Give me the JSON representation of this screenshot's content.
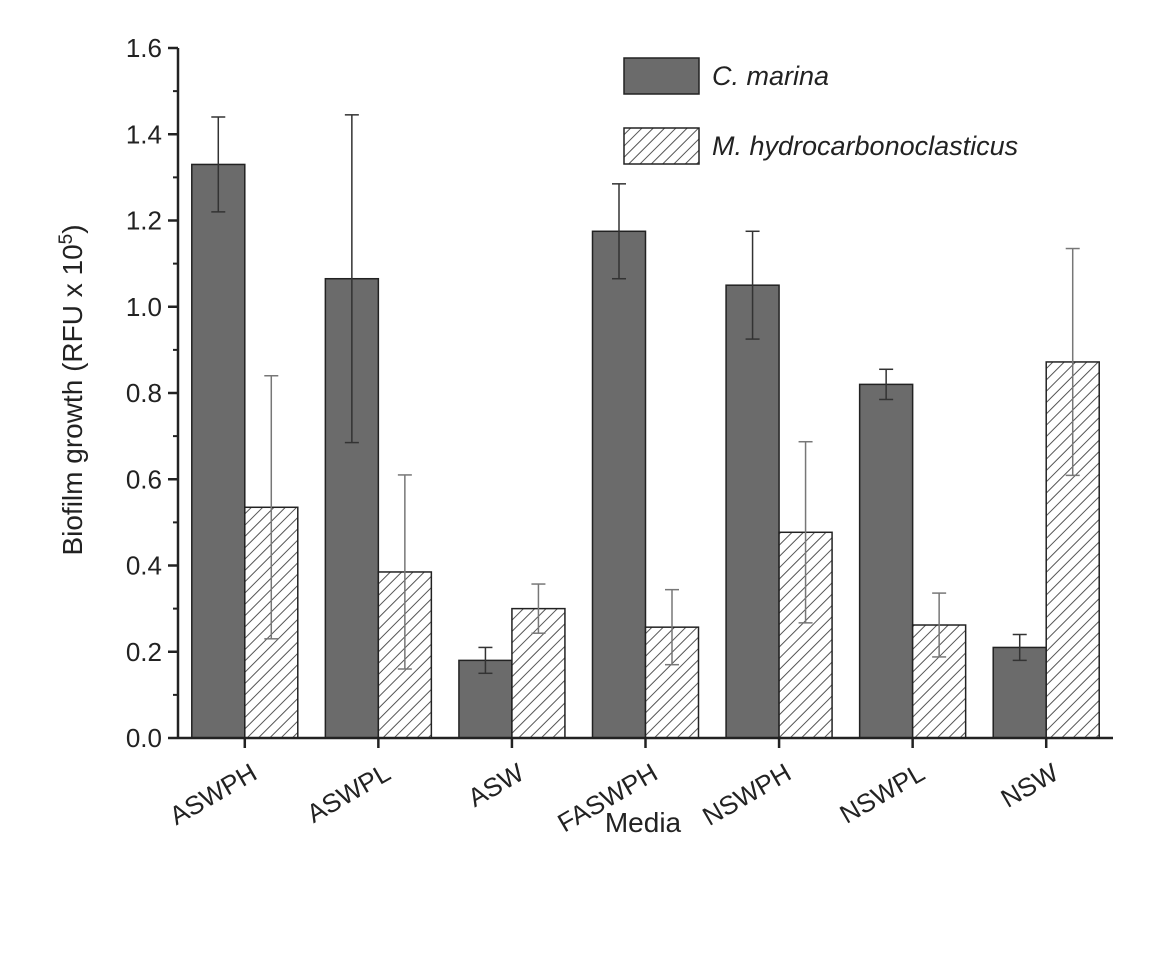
{
  "chart_data": {
    "type": "bar",
    "title": "",
    "xlabel": "Media",
    "ylabel": "Biofilm growth (RFU x 10",
    "ylabel_superscript": "5",
    "ylabel_suffix": ")",
    "ylim": [
      0,
      1.6
    ],
    "yticks": [
      "0.0",
      "0.2",
      "0.4",
      "0.6",
      "0.8",
      "1.0",
      "1.2",
      "1.4",
      "1.6"
    ],
    "categories": [
      "ASWPH",
      "ASWPL",
      "ASW",
      "FASWPH",
      "NSWPH",
      "NSWPL",
      "NSW"
    ],
    "series": [
      {
        "name": "C. marina",
        "pattern": "solid",
        "color": "#6b6b6b",
        "values": [
          1.33,
          1.065,
          0.18,
          1.175,
          1.05,
          0.82,
          0.21
        ],
        "errors": [
          0.11,
          0.38,
          0.03,
          0.11,
          0.125,
          0.035,
          0.03
        ]
      },
      {
        "name": "M. hydrocarbonoclasticus",
        "pattern": "hatched",
        "color": "#ffffff",
        "values": [
          0.535,
          0.385,
          0.3,
          0.257,
          0.477,
          0.262,
          0.872
        ],
        "errors": [
          0.305,
          0.225,
          0.057,
          0.087,
          0.21,
          0.074,
          0.263
        ]
      }
    ],
    "legend_position": "top-right",
    "grid": false
  }
}
